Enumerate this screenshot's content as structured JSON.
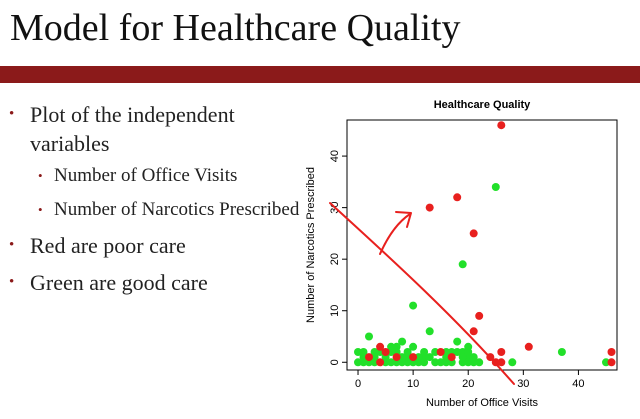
{
  "slide": {
    "title": "Model for Healthcare Quality",
    "accent_color": "#8b1a1a",
    "bullets": [
      {
        "text": "Plot of the independent variables",
        "sub": [
          "Number of Office Visits",
          "Number of Narcotics Prescribed"
        ]
      },
      {
        "text": "Red are poor care",
        "sub": []
      },
      {
        "text": "Green are good care",
        "sub": []
      }
    ]
  },
  "chart_data": {
    "type": "scatter",
    "title": "Healthcare Quality",
    "xlabel": "Number of Office Visits",
    "ylabel": "Number of Narcotics Prescribed",
    "xlim": [
      -2,
      47
    ],
    "ylim": [
      -1.5,
      47
    ],
    "xticks": [
      0,
      10,
      20,
      30,
      40
    ],
    "yticks": [
      0,
      10,
      20,
      30,
      40
    ],
    "grid": false,
    "series": [
      {
        "color": "#e8201e",
        "points": [
          [
            26,
            46
          ],
          [
            18,
            32
          ],
          [
            13,
            30
          ],
          [
            21,
            25
          ],
          [
            22,
            9
          ],
          [
            21,
            6
          ],
          [
            26,
            2
          ],
          [
            24,
            1
          ],
          [
            31,
            3
          ],
          [
            46,
            2
          ],
          [
            46,
            0
          ],
          [
            26,
            0
          ],
          [
            4,
            3
          ],
          [
            5,
            2
          ],
          [
            15,
            2
          ],
          [
            2,
            1
          ],
          [
            7,
            1
          ],
          [
            10,
            1
          ],
          [
            17,
            1
          ],
          [
            25,
            0
          ],
          [
            4,
            0
          ]
        ]
      },
      {
        "color": "#22e02a",
        "points": [
          [
            25,
            34
          ],
          [
            19,
            19
          ],
          [
            10,
            11
          ],
          [
            18,
            4
          ],
          [
            20,
            3
          ],
          [
            13,
            6
          ],
          [
            2,
            5
          ],
          [
            6,
            3
          ],
          [
            7,
            3
          ],
          [
            8,
            4
          ],
          [
            9,
            2
          ],
          [
            12,
            1
          ],
          [
            14,
            0
          ],
          [
            16,
            2
          ],
          [
            19,
            2
          ],
          [
            20,
            1
          ],
          [
            20,
            0
          ],
          [
            28,
            0
          ],
          [
            37,
            2
          ],
          [
            45,
            0
          ],
          [
            0,
            2
          ],
          [
            1,
            1
          ],
          [
            3,
            0
          ],
          [
            4,
            2
          ],
          [
            5,
            1
          ],
          [
            6,
            0
          ],
          [
            7,
            2
          ],
          [
            8,
            1
          ],
          [
            9,
            0
          ],
          [
            10,
            3
          ],
          [
            11,
            0
          ],
          [
            12,
            2
          ],
          [
            13,
            1
          ],
          [
            14,
            2
          ],
          [
            15,
            0
          ],
          [
            16,
            1
          ],
          [
            17,
            0
          ],
          [
            18,
            2
          ],
          [
            19,
            0
          ],
          [
            21,
            1
          ],
          [
            22,
            0
          ],
          [
            0,
            0
          ],
          [
            1,
            2
          ],
          [
            2,
            0
          ],
          [
            3,
            2
          ],
          [
            5,
            0
          ],
          [
            6,
            2
          ],
          [
            7,
            0
          ],
          [
            8,
            0
          ],
          [
            9,
            1
          ],
          [
            10,
            0
          ],
          [
            11,
            1
          ],
          [
            16,
            0
          ],
          [
            17,
            2
          ],
          [
            19,
            1
          ],
          [
            20,
            2
          ],
          [
            21,
            0
          ],
          [
            1,
            0
          ],
          [
            3,
            1
          ],
          [
            12,
            0
          ]
        ]
      }
    ],
    "annotation_color": "#e8201e"
  }
}
